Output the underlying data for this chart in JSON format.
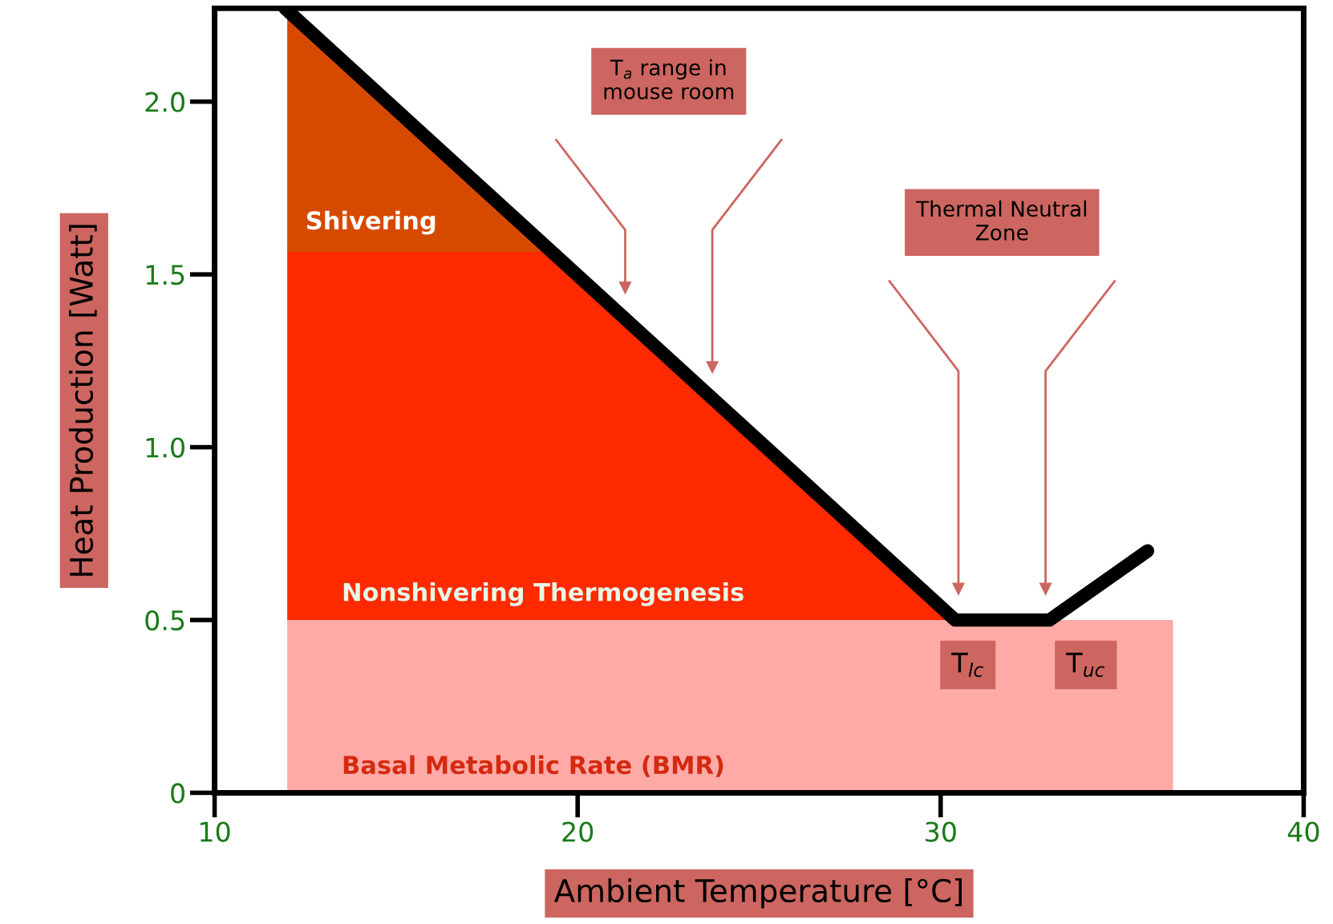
{
  "chart_data": {
    "type": "area",
    "stacked": true,
    "xlabel": "Ambient Temperature [°C]",
    "ylabel": "Heat Production [Watt]",
    "xlim": [
      10,
      40
    ],
    "xticks": [
      10,
      20,
      30,
      40
    ],
    "ylim": [
      0,
      2.27
    ],
    "yticks": [
      0,
      {
        "value": 0.5,
        "label": "0.5"
      },
      {
        "value": 1,
        "label": "1.0"
      },
      {
        "value": 1.5,
        "label": "1.5"
      },
      {
        "value": 2,
        "label": "2.0"
      }
    ],
    "x": [
      12,
      19.2,
      30.4,
      36.4
    ],
    "series": [
      {
        "name": "Basal Metabolic Rate (BMR)",
        "color": "#ffaaa6",
        "values": [
          0.5,
          0.5,
          0.5,
          0.5
        ]
      },
      {
        "name": "Nonshivering Thermogenesis",
        "color": "#ff2a00",
        "values": [
          1.065,
          1.065,
          0,
          0
        ]
      },
      {
        "name": "Shivering",
        "color": "#d64a00",
        "values": [
          0.705,
          0,
          0,
          0
        ]
      },
      {
        "type": "line",
        "color": "#000000",
        "x": [
          11.94,
          30.4,
          33.0,
          35.7
        ],
        "values": [
          2.27,
          0.5,
          0.5,
          0.7
        ]
      }
    ],
    "annotations": [
      "T$_{a}$ range in\nmouse room",
      "Thermal Neutral\nZone",
      {
        "text": "T$_{lc}$",
        "x": 30.4,
        "y": 0.5
      },
      {
        "text": "T$_{uc}$",
        "x": 33.0,
        "y": 0.5
      }
    ],
    "grid": false,
    "legend": false
  }
}
